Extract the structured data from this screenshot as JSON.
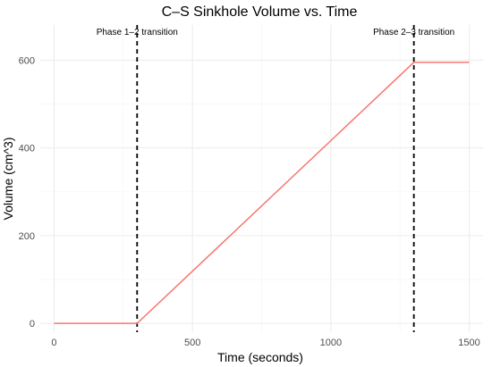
{
  "chart_data": {
    "type": "line",
    "title": "C–S Sinkhole Volume vs. Time",
    "xlabel": "Time (seconds)",
    "ylabel": "Volume (cm^3)",
    "xlim": [
      -50,
      1550
    ],
    "ylim": [
      -20,
      680
    ],
    "x_ticks": [
      0,
      500,
      1000,
      1500
    ],
    "y_ticks": [
      0,
      200,
      400,
      600
    ],
    "grid": true,
    "series": [
      {
        "color": "#F8766D",
        "points": [
          [
            0,
            0
          ],
          [
            300,
            0
          ],
          [
            1300,
            595
          ],
          [
            1500,
            595
          ]
        ]
      }
    ],
    "vlines": [
      {
        "x": 300,
        "label": "Phase 1–2 transition"
      },
      {
        "x": 1300,
        "label": "Phase 2–3 transition"
      }
    ]
  }
}
